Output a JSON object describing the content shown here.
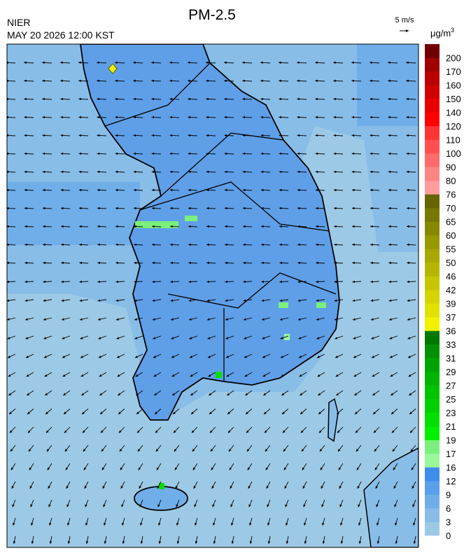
{
  "header": {
    "title": "PM-2.5",
    "agency": "NIER",
    "timestamp": "MAY 20 2026 12:00 KST",
    "wind_scale": "5 m/s"
  },
  "legend": {
    "unit": "μg/m",
    "unit_sup": "3",
    "labels": [
      0,
      3,
      6,
      9,
      12,
      16,
      17,
      19,
      21,
      23,
      25,
      27,
      29,
      31,
      33,
      36,
      37,
      39,
      42,
      46,
      50,
      55,
      60,
      65,
      70,
      76,
      80,
      90,
      100,
      110,
      120,
      140,
      150,
      160,
      170,
      200
    ],
    "colors": [
      "#9ccae6",
      "#88bde8",
      "#70aeea",
      "#5a9fea",
      "#3e8eea",
      "#9af89a",
      "#7cf07c",
      "#00f000",
      "#00e000",
      "#00d000",
      "#00c400",
      "#00b400",
      "#00a400",
      "#009000",
      "#007800",
      "#f2f200",
      "#e2e200",
      "#d4d400",
      "#c6c600",
      "#b6b600",
      "#a8a800",
      "#989800",
      "#888800",
      "#787800",
      "#666600",
      "#ff9c9c",
      "#ff8484",
      "#ff6a6a",
      "#ff5050",
      "#ff3434",
      "#ff0000",
      "#e80000",
      "#d00000",
      "#b80000",
      "#a00000",
      "#700000"
    ]
  }
}
